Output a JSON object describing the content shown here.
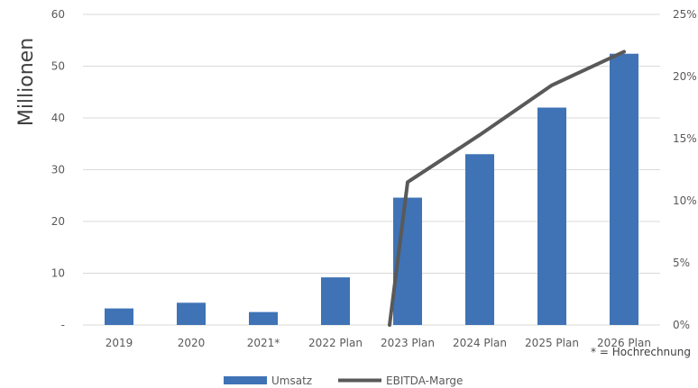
{
  "chart_data": {
    "type": "bar",
    "categories": [
      "2019",
      "2020",
      "2021*",
      "2022 Plan",
      "2023 Plan",
      "2024 Plan",
      "2025 Plan",
      "2026 Plan"
    ],
    "series": [
      {
        "name": "Umsatz",
        "type": "bar",
        "axis": "left",
        "color": "#3f73b6",
        "values": [
          3.2,
          4.3,
          2.5,
          9.2,
          24.6,
          33.0,
          42.0,
          52.4
        ]
      },
      {
        "name": "EBITDA-Marge",
        "type": "line",
        "axis": "right",
        "color": "#595959",
        "values": [
          null,
          null,
          null,
          null,
          11.5,
          15.3,
          19.3,
          22.0
        ],
        "start_value": 0
      }
    ],
    "ylabel": "Millionen",
    "ylim": [
      0,
      60
    ],
    "y_ticks": [
      "-",
      "10",
      "20",
      "30",
      "40",
      "50",
      "60"
    ],
    "y2lim": [
      0,
      25
    ],
    "y2_ticks": [
      "0%",
      "5%",
      "10%",
      "15%",
      "20%",
      "25%"
    ],
    "grid": true,
    "legend_position": "bottom",
    "footnote": "* = Hochrechnung"
  }
}
